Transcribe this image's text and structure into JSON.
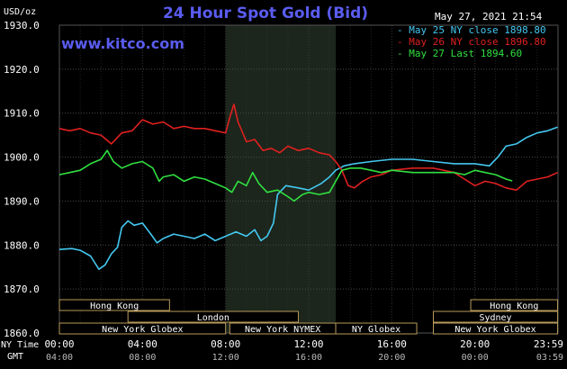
{
  "chart_data": {
    "type": "line",
    "title": "24 Hour Spot Gold (Bid)",
    "ylabel": "USD/oz",
    "timestamp": "May 27, 2021 21:54",
    "watermark": "www.kitco.com",
    "ylim": [
      1860.0,
      1930.0
    ],
    "y_ticks": [
      "1860.0",
      "1870.0",
      "1880.0",
      "1890.0",
      "1900.0",
      "1910.0",
      "1920.0",
      "1930.0"
    ],
    "x_range_hours": [
      0,
      24
    ],
    "x_ticks": [
      {
        "ny": "00:00",
        "gmt": "04:00",
        "h": 0
      },
      {
        "ny": "04:00",
        "gmt": "08:00",
        "h": 4
      },
      {
        "ny": "08:00",
        "gmt": "12:00",
        "h": 8
      },
      {
        "ny": "12:00",
        "gmt": "16:00",
        "h": 12
      },
      {
        "ny": "16:00",
        "gmt": "20:00",
        "h": 16
      },
      {
        "ny": "20:00",
        "gmt": "00:00",
        "h": 20
      },
      {
        "ny": "23:59",
        "gmt": "03:59",
        "h": 23.98
      }
    ],
    "axis_row_labels": {
      "ny": "NY Time",
      "gmt": "GMT"
    },
    "highlight_band_hours": [
      8,
      13.3
    ],
    "sessions": [
      {
        "label": "Hong Kong",
        "start": 0,
        "end": 5.3,
        "row": 0
      },
      {
        "label": "Hong Kong",
        "start": 19.8,
        "end": 23.98,
        "row": 0
      },
      {
        "label": "London",
        "start": 3.3,
        "end": 11.5,
        "row": 1
      },
      {
        "label": "Sydney",
        "start": 18.0,
        "end": 23.98,
        "row": 1
      },
      {
        "label": "New York Globex",
        "start": 0,
        "end": 8.0,
        "row": 2
      },
      {
        "label": "New York NYMEX",
        "start": 8.2,
        "end": 13.3,
        "row": 2
      },
      {
        "label": "NY Globex",
        "start": 13.3,
        "end": 17.2,
        "row": 2
      },
      {
        "label": "New York Globex",
        "start": 18.0,
        "end": 23.98,
        "row": 2
      }
    ],
    "series": [
      {
        "name": "May 25 NY close 1898.80",
        "color": "#44c8f0",
        "points": [
          [
            0,
            1879.0
          ],
          [
            0.6,
            1879.2
          ],
          [
            1.0,
            1878.8
          ],
          [
            1.5,
            1877.5
          ],
          [
            1.9,
            1874.5
          ],
          [
            2.2,
            1875.5
          ],
          [
            2.5,
            1878.0
          ],
          [
            2.8,
            1879.5
          ],
          [
            3.0,
            1884.0
          ],
          [
            3.3,
            1885.5
          ],
          [
            3.6,
            1884.5
          ],
          [
            4.0,
            1885.0
          ],
          [
            4.4,
            1882.5
          ],
          [
            4.7,
            1880.5
          ],
          [
            5.0,
            1881.5
          ],
          [
            5.5,
            1882.5
          ],
          [
            6.0,
            1882.0
          ],
          [
            6.5,
            1881.5
          ],
          [
            7.0,
            1882.5
          ],
          [
            7.5,
            1881.0
          ],
          [
            8.0,
            1882.0
          ],
          [
            8.5,
            1883.0
          ],
          [
            9.0,
            1882.0
          ],
          [
            9.4,
            1883.5
          ],
          [
            9.7,
            1881.0
          ],
          [
            10.0,
            1882.0
          ],
          [
            10.3,
            1885.0
          ],
          [
            10.5,
            1891.5
          ],
          [
            10.9,
            1893.5
          ],
          [
            11.5,
            1893.0
          ],
          [
            12.0,
            1892.5
          ],
          [
            12.6,
            1894.0
          ],
          [
            13.0,
            1895.5
          ],
          [
            13.3,
            1897.0
          ],
          [
            13.7,
            1898.0
          ],
          [
            14.2,
            1898.5
          ],
          [
            15.0,
            1899.0
          ],
          [
            16.0,
            1899.5
          ],
          [
            17.0,
            1899.5
          ],
          [
            18.0,
            1899.0
          ],
          [
            19.0,
            1898.5
          ],
          [
            20.0,
            1898.5
          ],
          [
            20.7,
            1898.0
          ],
          [
            21.1,
            1900.0
          ],
          [
            21.5,
            1902.5
          ],
          [
            22.0,
            1903.0
          ],
          [
            22.5,
            1904.5
          ],
          [
            23.0,
            1905.5
          ],
          [
            23.5,
            1906.0
          ],
          [
            23.98,
            1906.8
          ]
        ]
      },
      {
        "name": "May 26 NY close 1896.80",
        "color": "#e02020",
        "points": [
          [
            0,
            1906.5
          ],
          [
            0.5,
            1906.0
          ],
          [
            1.0,
            1906.5
          ],
          [
            1.5,
            1905.5
          ],
          [
            2.0,
            1905.0
          ],
          [
            2.5,
            1903.0
          ],
          [
            3.0,
            1905.5
          ],
          [
            3.5,
            1906.0
          ],
          [
            4.0,
            1908.5
          ],
          [
            4.5,
            1907.5
          ],
          [
            5.0,
            1908.0
          ],
          [
            5.5,
            1906.5
          ],
          [
            6.0,
            1907.0
          ],
          [
            6.5,
            1906.5
          ],
          [
            7.0,
            1906.5
          ],
          [
            7.5,
            1906.0
          ],
          [
            8.0,
            1905.5
          ],
          [
            8.2,
            1909.0
          ],
          [
            8.4,
            1912.0
          ],
          [
            8.6,
            1908.0
          ],
          [
            9.0,
            1903.5
          ],
          [
            9.4,
            1904.0
          ],
          [
            9.8,
            1901.5
          ],
          [
            10.2,
            1902.0
          ],
          [
            10.6,
            1901.0
          ],
          [
            11.0,
            1902.5
          ],
          [
            11.5,
            1901.5
          ],
          [
            12.0,
            1902.0
          ],
          [
            12.5,
            1901.0
          ],
          [
            13.0,
            1900.5
          ],
          [
            13.3,
            1899.0
          ],
          [
            13.6,
            1897.0
          ],
          [
            13.9,
            1893.5
          ],
          [
            14.2,
            1893.0
          ],
          [
            14.6,
            1894.5
          ],
          [
            15.0,
            1895.5
          ],
          [
            15.5,
            1896.0
          ],
          [
            16.0,
            1897.0
          ],
          [
            17.0,
            1897.5
          ],
          [
            18.0,
            1897.5
          ],
          [
            19.0,
            1896.5
          ],
          [
            19.5,
            1895.0
          ],
          [
            20.0,
            1893.5
          ],
          [
            20.5,
            1894.5
          ],
          [
            21.0,
            1894.0
          ],
          [
            21.5,
            1893.0
          ],
          [
            22.0,
            1892.5
          ],
          [
            22.5,
            1894.5
          ],
          [
            23.0,
            1895.0
          ],
          [
            23.5,
            1895.5
          ],
          [
            23.98,
            1896.5
          ]
        ]
      },
      {
        "name": "May 27 Last 1894.60",
        "color": "#30e040",
        "points": [
          [
            0,
            1896.0
          ],
          [
            0.5,
            1896.5
          ],
          [
            1.0,
            1897.0
          ],
          [
            1.5,
            1898.5
          ],
          [
            2.0,
            1899.5
          ],
          [
            2.3,
            1901.5
          ],
          [
            2.6,
            1899.0
          ],
          [
            3.0,
            1897.5
          ],
          [
            3.5,
            1898.5
          ],
          [
            4.0,
            1899.0
          ],
          [
            4.5,
            1897.5
          ],
          [
            4.8,
            1894.5
          ],
          [
            5.0,
            1895.5
          ],
          [
            5.5,
            1896.0
          ],
          [
            6.0,
            1894.5
          ],
          [
            6.5,
            1895.5
          ],
          [
            7.0,
            1895.0
          ],
          [
            7.5,
            1894.0
          ],
          [
            8.0,
            1893.0
          ],
          [
            8.3,
            1892.0
          ],
          [
            8.6,
            1894.5
          ],
          [
            9.0,
            1893.5
          ],
          [
            9.3,
            1896.5
          ],
          [
            9.6,
            1894.0
          ],
          [
            10.0,
            1892.0
          ],
          [
            10.5,
            1892.5
          ],
          [
            11.0,
            1891.0
          ],
          [
            11.3,
            1890.0
          ],
          [
            11.7,
            1891.5
          ],
          [
            12.0,
            1892.0
          ],
          [
            12.5,
            1891.5
          ],
          [
            13.0,
            1892.0
          ],
          [
            13.3,
            1894.5
          ],
          [
            13.6,
            1897.0
          ],
          [
            14.0,
            1897.5
          ],
          [
            14.5,
            1897.5
          ],
          [
            15.0,
            1897.0
          ],
          [
            15.5,
            1896.5
          ],
          [
            16.0,
            1897.0
          ],
          [
            17.0,
            1896.5
          ],
          [
            18.0,
            1896.5
          ],
          [
            19.0,
            1896.5
          ],
          [
            19.5,
            1896.0
          ],
          [
            20.0,
            1897.0
          ],
          [
            20.5,
            1896.5
          ],
          [
            21.0,
            1896.0
          ],
          [
            21.5,
            1895.0
          ],
          [
            21.8,
            1894.6
          ]
        ]
      }
    ]
  }
}
